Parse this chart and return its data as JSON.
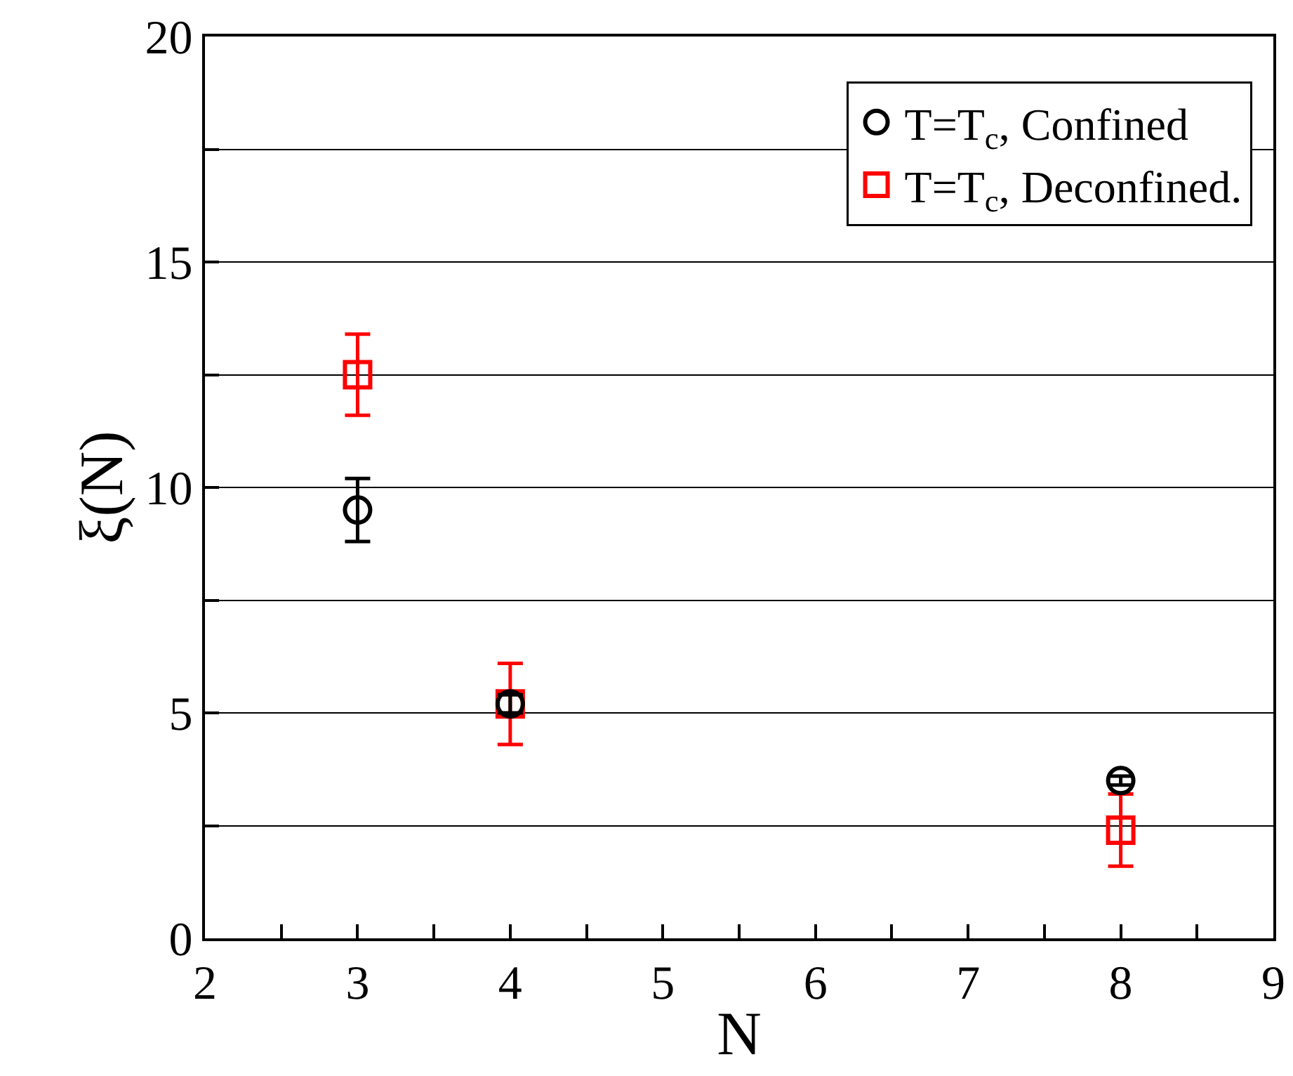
{
  "chart_data": {
    "type": "scatter",
    "xlabel": "N",
    "ylabel": "ξ(N)",
    "xlim": [
      2,
      9
    ],
    "xticks": [
      2,
      {
        "value": 2.5,
        "label": null
      },
      3,
      {
        "value": 3.5,
        "label": null
      },
      4,
      {
        "value": 4.5,
        "label": null
      },
      5,
      {
        "value": 5.5,
        "label": null
      },
      6,
      {
        "value": 6.5,
        "label": null
      },
      7,
      {
        "value": 7.5,
        "label": null
      },
      8,
      {
        "value": 8.5,
        "label": null
      },
      9
    ],
    "ylim": [
      0,
      20
    ],
    "yticks": [
      0,
      {
        "value": 2.5,
        "label": null
      },
      5,
      {
        "value": 7.5,
        "label": null
      },
      10,
      {
        "value": 12.5,
        "label": null
      },
      15,
      {
        "value": 17.5,
        "label": null
      },
      20
    ],
    "grid": "y",
    "legend": "top right",
    "series": [
      {
        "name": "T=T$_{c}$, Confined",
        "color": "#000000",
        "marker": "circle",
        "x": [
          3,
          4,
          8
        ],
        "values": [
          9.5,
          5.2,
          3.5
        ],
        "errors": [
          0.7,
          0.2,
          0.1
        ]
      },
      {
        "name": "T=T$_{c}$, Deconfined.",
        "color": "#ff0000",
        "marker": "square",
        "x": [
          3,
          4,
          8
        ],
        "values": [
          12.5,
          5.2,
          2.4
        ],
        "errors": [
          0.9,
          0.9,
          0.8
        ]
      }
    ]
  }
}
